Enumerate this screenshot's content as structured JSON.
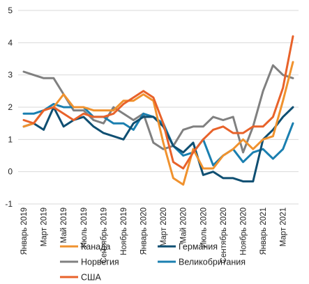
{
  "chart_data": {
    "type": "line",
    "title": "",
    "xlabel": "",
    "ylabel": "",
    "ylim": [
      -1,
      5
    ],
    "yticks": [
      -1,
      0,
      1,
      2,
      3,
      4,
      5
    ],
    "grid": "horizontal",
    "legend_position": "bottom",
    "x": [
      "Январь 2019",
      "Февраль 2019",
      "Март 2019",
      "Апрель 2019",
      "Май 2019",
      "Июнь 2019",
      "Июль 2019",
      "Август 2019",
      "Сентябрь 2019",
      "Октябрь 2019",
      "Ноябрь 2019",
      "Декабрь 2019",
      "Январь 2020",
      "Февраль 2020",
      "Март 2020",
      "Апрель 2020",
      "Май 2020",
      "Июнь 2020",
      "Июль 2020",
      "Август 2020",
      "Сентябрь 2020",
      "Октябрь 2020",
      "Ноябрь 2020",
      "Декабрь 2020",
      "Январь 2021",
      "Февраль 2021",
      "Март 2021",
      "Апрель 2021"
    ],
    "x_tick_labels": [
      {
        "i": 0,
        "label": "Январь 2019"
      },
      {
        "i": 2,
        "label": "Март 2019"
      },
      {
        "i": 4,
        "label": "Май 2019"
      },
      {
        "i": 6,
        "label": "Июль 2019"
      },
      {
        "i": 8,
        "label": "Сентябрь 2019"
      },
      {
        "i": 10,
        "label": "Ноябрь 2019"
      },
      {
        "i": 12,
        "label": "Январь 2020"
      },
      {
        "i": 14,
        "label": "Март 2020"
      },
      {
        "i": 16,
        "label": "Май 2020"
      },
      {
        "i": 18,
        "label": "Июль 2020"
      },
      {
        "i": 20,
        "label": "Сентябрь 2020"
      },
      {
        "i": 22,
        "label": "Ноябрь 2020"
      },
      {
        "i": 24,
        "label": "Январь 2021"
      },
      {
        "i": 26,
        "label": "Март 2021"
      }
    ],
    "series": [
      {
        "name": "Норвегия",
        "color": "#808080",
        "values": [
          3.1,
          3.0,
          2.9,
          2.9,
          2.4,
          1.9,
          1.9,
          1.6,
          1.5,
          2.0,
          1.8,
          1.6,
          1.8,
          0.9,
          0.7,
          0.8,
          1.3,
          1.4,
          1.4,
          1.7,
          1.6,
          1.7,
          0.6,
          1.4,
          2.5,
          3.3,
          3.0,
          2.9
        ]
      },
      {
        "name": "Великобритания",
        "color": "#1a7fb0",
        "values": [
          1.8,
          1.8,
          1.9,
          2.1,
          2.0,
          2.0,
          2.0,
          1.7,
          1.7,
          1.5,
          1.5,
          1.3,
          1.8,
          1.7,
          1.5,
          0.8,
          0.5,
          0.6,
          1.0,
          0.2,
          0.5,
          0.7,
          0.3,
          0.6,
          0.7,
          0.4,
          0.7,
          1.5
        ]
      },
      {
        "name": "Германия",
        "color": "#0f4f72",
        "values": [
          1.4,
          1.5,
          1.3,
          2.0,
          1.4,
          1.6,
          1.7,
          1.4,
          1.2,
          1.1,
          1.0,
          1.5,
          1.7,
          1.7,
          1.4,
          0.8,
          0.6,
          0.9,
          -0.1,
          0.0,
          -0.2,
          -0.2,
          -0.3,
          -0.3,
          1.0,
          1.3,
          1.7,
          2.0
        ]
      },
      {
        "name": "Канада",
        "color": "#f0922e",
        "values": [
          1.4,
          1.5,
          1.9,
          2.0,
          2.4,
          2.0,
          2.0,
          1.9,
          1.9,
          1.9,
          2.2,
          2.2,
          2.4,
          2.2,
          0.9,
          -0.2,
          -0.4,
          0.7,
          0.1,
          0.1,
          0.5,
          0.7,
          1.0,
          0.7,
          1.0,
          1.1,
          2.2,
          3.4
        ]
      },
      {
        "name": "США",
        "color": "#e8622a",
        "values": [
          1.6,
          1.5,
          1.9,
          2.0,
          1.8,
          1.6,
          1.8,
          1.7,
          1.7,
          1.8,
          2.1,
          2.3,
          2.5,
          2.3,
          1.5,
          0.3,
          0.1,
          0.6,
          1.0,
          1.3,
          1.4,
          1.2,
          1.2,
          1.4,
          1.4,
          1.7,
          2.6,
          4.2
        ]
      }
    ],
    "legend": [
      {
        "label": "Канада",
        "color": "#f0922e"
      },
      {
        "label": "Германия",
        "color": "#0f4f72"
      },
      {
        "label": "Норвегия",
        "color": "#808080"
      },
      {
        "label": "Великобритания",
        "color": "#1a7fb0"
      },
      {
        "label": "США",
        "color": "#e8622a"
      }
    ]
  }
}
